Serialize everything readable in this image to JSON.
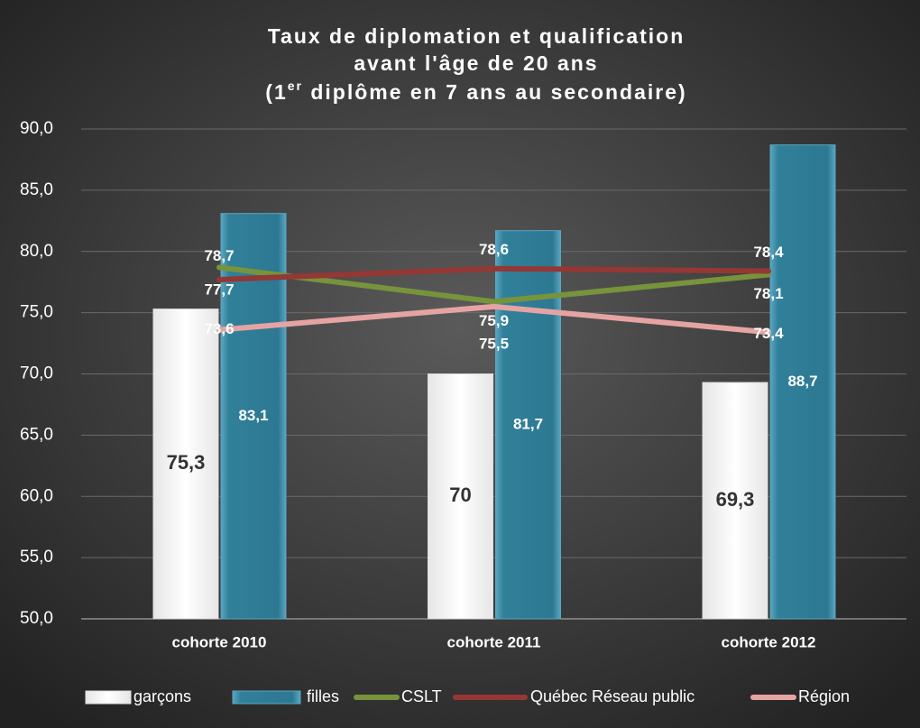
{
  "chart_data": {
    "type": "bar",
    "title": [
      "Taux de diplomation et qualification",
      "avant l'âge de 20 ans",
      [
        "(1",
        "er",
        " diplôme en 7 ans au secondaire)"
      ]
    ],
    "categories": [
      "cohorte 2010",
      "cohorte 2011",
      "cohorte 2012"
    ],
    "ylim": [
      50,
      90
    ],
    "yticks": [
      {
        "value": 50,
        "label": "50,0"
      },
      {
        "value": 55,
        "label": "55,0"
      },
      {
        "value": 60,
        "label": "60,0"
      },
      {
        "value": 65,
        "label": "65,0"
      },
      {
        "value": 70,
        "label": "70,0"
      },
      {
        "value": 75,
        "label": "75,0"
      },
      {
        "value": 80,
        "label": "80,0"
      },
      {
        "value": 85,
        "label": "85,0"
      },
      {
        "value": 90,
        "label": "90,0"
      }
    ],
    "grid": true,
    "legend": "bottom",
    "series": [
      {
        "name": "garçons",
        "type": "bar",
        "color": "#ffffff",
        "values": [
          75.3,
          70,
          69.3
        ],
        "value_labels": [
          "75,3",
          "70",
          "69,3"
        ]
      },
      {
        "name": "filles",
        "type": "bar",
        "color": "#31809a",
        "values": [
          83.1,
          81.7,
          88.7
        ],
        "value_labels": [
          "83,1",
          "81,7",
          "88,7"
        ]
      },
      {
        "name": "CSLT",
        "type": "line",
        "color": "#77933c",
        "values": [
          78.7,
          75.9,
          78.1
        ],
        "value_labels": [
          "78,7",
          "75,9",
          "78,1"
        ]
      },
      {
        "name": "Québec Réseau public",
        "type": "line",
        "color": "#953735",
        "values": [
          77.7,
          78.6,
          78.4
        ],
        "value_labels": [
          "77,7",
          "78,6",
          "78,4"
        ]
      },
      {
        "name": "Région",
        "type": "line",
        "color": "#e6a3a3",
        "values": [
          73.6,
          75.5,
          73.4
        ],
        "value_labels": [
          "73,6",
          "75,5",
          "73,4"
        ]
      }
    ]
  }
}
